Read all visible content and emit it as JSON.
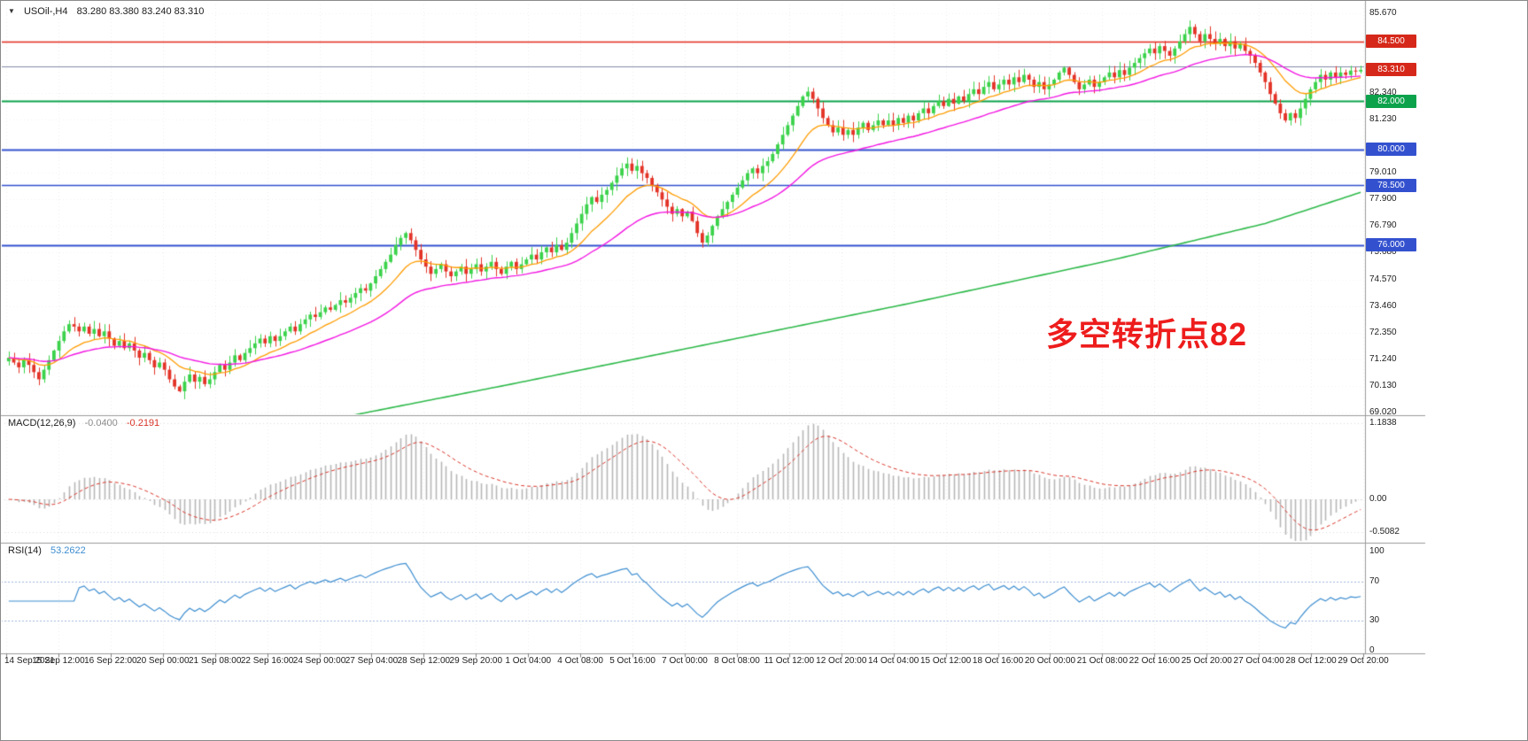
{
  "chart": {
    "symbol_period": "USOil-,H4",
    "ohlc_text": "83.280 83.380 83.240 83.310",
    "annotation": "多空转折点82",
    "annotation_color": "#ee1c1c"
  },
  "price_axis": {
    "labels": [
      {
        "text": "85.670",
        "value": 85.67
      },
      {
        "text": "82.340",
        "value": 82.34
      },
      {
        "text": "81.230",
        "value": 81.23
      },
      {
        "text": "79.010",
        "value": 79.01
      },
      {
        "text": "77.900",
        "value": 77.9
      },
      {
        "text": "76.790",
        "value": 76.79
      },
      {
        "text": "75.680",
        "value": 75.68
      },
      {
        "text": "74.570",
        "value": 74.57
      },
      {
        "text": "73.460",
        "value": 73.46
      },
      {
        "text": "72.350",
        "value": 72.35
      },
      {
        "text": "71.240",
        "value": 71.24
      },
      {
        "text": "70.130",
        "value": 70.13
      },
      {
        "text": "69.020",
        "value": 69.02
      }
    ],
    "badges": [
      {
        "text": "84.500",
        "value": 84.5,
        "bg": "#d6281a"
      },
      {
        "text": "83.310",
        "value": 83.31,
        "bg": "#d6281a"
      },
      {
        "text": "82.000",
        "value": 82.0,
        "bg": "#0ca24c"
      },
      {
        "text": "80.000",
        "value": 80.0,
        "bg": "#3351cf"
      },
      {
        "text": "78.500",
        "value": 78.5,
        "bg": "#3351cf"
      },
      {
        "text": "76.000",
        "value": 76.0,
        "bg": "#3351cf"
      }
    ]
  },
  "macd_panel": {
    "name": "MACD(12,26,9)",
    "value_main": "-0.0400",
    "value_signal": "-0.2191",
    "axis_labels": [
      {
        "text": "1.1838",
        "value": 1.1838
      },
      {
        "text": "0.00",
        "value": 0
      },
      {
        "text": "-0.5082",
        "value": -0.5082
      }
    ]
  },
  "rsi_panel": {
    "name": "RSI(14)",
    "value": "53.2622",
    "axis_labels": [
      {
        "text": "100",
        "value": 100
      },
      {
        "text": "70",
        "value": 70
      },
      {
        "text": "30",
        "value": 30
      },
      {
        "text": "0",
        "value": 0
      }
    ],
    "levels": [
      70,
      30
    ]
  },
  "chart_data": {
    "type": "candlestick",
    "title": "USOil-,H4 83.280 83.380 83.240 83.310",
    "symbol": "USOil",
    "timeframe": "H4",
    "ylim": [
      68.94,
      86.04
    ],
    "x_labels": [
      "14 Sep 2021",
      "15 Sep 12:00",
      "16 Sep 22:00",
      "20 Sep 00:00",
      "21 Sep 08:00",
      "22 Sep 16:00",
      "24 Sep 00:00",
      "27 Sep 04:00",
      "28 Sep 12:00",
      "29 Sep 20:00",
      "1 Oct 04:00",
      "4 Oct 08:00",
      "5 Oct 16:00",
      "7 Oct 00:00",
      "8 Oct 08:00",
      "11 Oct 12:00",
      "12 Oct 20:00",
      "14 Oct 04:00",
      "15 Oct 12:00",
      "18 Oct 16:00",
      "20 Oct 00:00",
      "21 Oct 08:00",
      "22 Oct 16:00",
      "25 Oct 20:00",
      "27 Oct 04:00",
      "28 Oct 12:00",
      "29 Oct 20:00"
    ],
    "closes": [
      71.3,
      71.1,
      70.9,
      71.2,
      71.0,
      70.7,
      70.4,
      70.8,
      71.2,
      71.6,
      72.0,
      72.4,
      72.7,
      72.6,
      72.4,
      72.6,
      72.3,
      72.5,
      72.2,
      72.4,
      72.1,
      71.8,
      72.0,
      71.7,
      71.9,
      71.6,
      71.3,
      71.5,
      71.2,
      70.9,
      71.1,
      70.8,
      70.4,
      70.1,
      69.9,
      70.3,
      70.6,
      70.3,
      70.5,
      70.2,
      70.4,
      70.7,
      71.0,
      70.8,
      71.1,
      71.4,
      71.2,
      71.5,
      71.7,
      71.9,
      72.1,
      71.9,
      72.2,
      72.0,
      72.2,
      72.4,
      72.6,
      72.4,
      72.7,
      72.9,
      73.1,
      73.0,
      73.2,
      73.4,
      73.3,
      73.5,
      73.7,
      73.6,
      73.8,
      74.0,
      74.2,
      74.1,
      74.4,
      74.7,
      75.0,
      75.3,
      75.6,
      76.0,
      76.3,
      76.5,
      76.2,
      75.8,
      75.4,
      75.1,
      74.8,
      75.0,
      75.2,
      74.9,
      74.7,
      74.9,
      75.1,
      74.8,
      75.0,
      75.2,
      74.9,
      75.1,
      75.3,
      75.0,
      74.8,
      75.1,
      75.3,
      75.0,
      75.2,
      75.4,
      75.6,
      75.4,
      75.7,
      75.9,
      75.7,
      76.0,
      75.8,
      76.1,
      76.5,
      76.9,
      77.3,
      77.7,
      78.0,
      77.8,
      78.1,
      78.3,
      78.6,
      78.9,
      79.2,
      79.4,
      79.1,
      79.3,
      79.0,
      78.8,
      78.5,
      78.2,
      77.9,
      77.6,
      77.3,
      77.5,
      77.2,
      77.4,
      77.0,
      76.5,
      76.1,
      76.4,
      76.8,
      77.2,
      77.5,
      77.8,
      78.1,
      78.4,
      78.7,
      79.0,
      79.2,
      79.0,
      79.3,
      79.5,
      79.8,
      80.2,
      80.6,
      81.0,
      81.4,
      81.8,
      82.2,
      82.4,
      82.1,
      81.7,
      81.3,
      81.0,
      80.7,
      80.9,
      80.6,
      80.8,
      80.6,
      80.9,
      81.1,
      80.8,
      81.0,
      81.2,
      81.0,
      81.2,
      81.0,
      81.3,
      81.1,
      81.4,
      81.2,
      81.5,
      81.7,
      81.5,
      81.8,
      82.0,
      81.8,
      82.1,
      81.9,
      82.2,
      82.0,
      82.3,
      82.5,
      82.3,
      82.6,
      82.8,
      82.5,
      82.7,
      82.9,
      82.7,
      83.0,
      82.8,
      83.1,
      82.9,
      82.6,
      82.8,
      82.5,
      82.7,
      82.9,
      83.2,
      83.4,
      83.1,
      82.8,
      82.5,
      82.7,
      82.9,
      82.6,
      82.8,
      83.0,
      83.2,
      83.0,
      83.3,
      83.1,
      83.4,
      83.6,
      83.8,
      84.0,
      84.2,
      84.0,
      84.3,
      84.1,
      83.9,
      84.2,
      84.5,
      84.8,
      85.1,
      84.8,
      84.5,
      84.8,
      84.6,
      84.4,
      84.6,
      84.3,
      84.5,
      84.2,
      84.4,
      84.1,
      83.9,
      83.6,
      83.2,
      82.8,
      82.3,
      81.9,
      81.5,
      81.2,
      81.5,
      81.3,
      81.7,
      82.1,
      82.5,
      82.8,
      83.1,
      82.9,
      83.2,
      83.0,
      83.2,
      83.1,
      83.28,
      83.24,
      83.31
    ],
    "last_candle": {
      "open": 83.28,
      "high": 83.38,
      "low": 83.24,
      "close": 83.31
    },
    "horizontal_lines": [
      {
        "value": 84.5,
        "color": "#e0281c",
        "width": 1.5
      },
      {
        "value": 83.45,
        "color": "#8089a6",
        "width": 1
      },
      {
        "value": 82.0,
        "color": "#0ca24c",
        "width": 2
      },
      {
        "value": 80.0,
        "color": "#3351cf",
        "width": 2
      },
      {
        "value": 78.5,
        "color": "#3351cf",
        "width": 1.5
      },
      {
        "value": 76.0,
        "color": "#3351cf",
        "width": 2
      }
    ],
    "moving_averages": {
      "fast": {
        "period": 13,
        "color": "#ff9c00"
      },
      "mid": {
        "period": 34,
        "color": "#f216e2"
      },
      "long": {
        "color": "#2eb94a",
        "points": [
          [
            66,
            68.8
          ],
          [
            100,
            70.2
          ],
          [
            140,
            71.9
          ],
          [
            180,
            73.6
          ],
          [
            220,
            75.4
          ],
          [
            250,
            76.9
          ],
          [
            269,
            78.2
          ]
        ]
      }
    },
    "indicators": {
      "macd": {
        "fast": 12,
        "slow": 26,
        "signal": 9,
        "scale_max": 1.1838,
        "scale_min": -0.5082,
        "last_main": -0.04,
        "last_signal": -0.2191,
        "hist_color": "#b6b6b6",
        "signal_color": "#d8352a"
      },
      "rsi": {
        "period": 14,
        "last": 53.2622,
        "color": "#3e8ed0"
      }
    },
    "candle_colors": {
      "up": "#3bd24b",
      "down": "#e33327"
    }
  }
}
